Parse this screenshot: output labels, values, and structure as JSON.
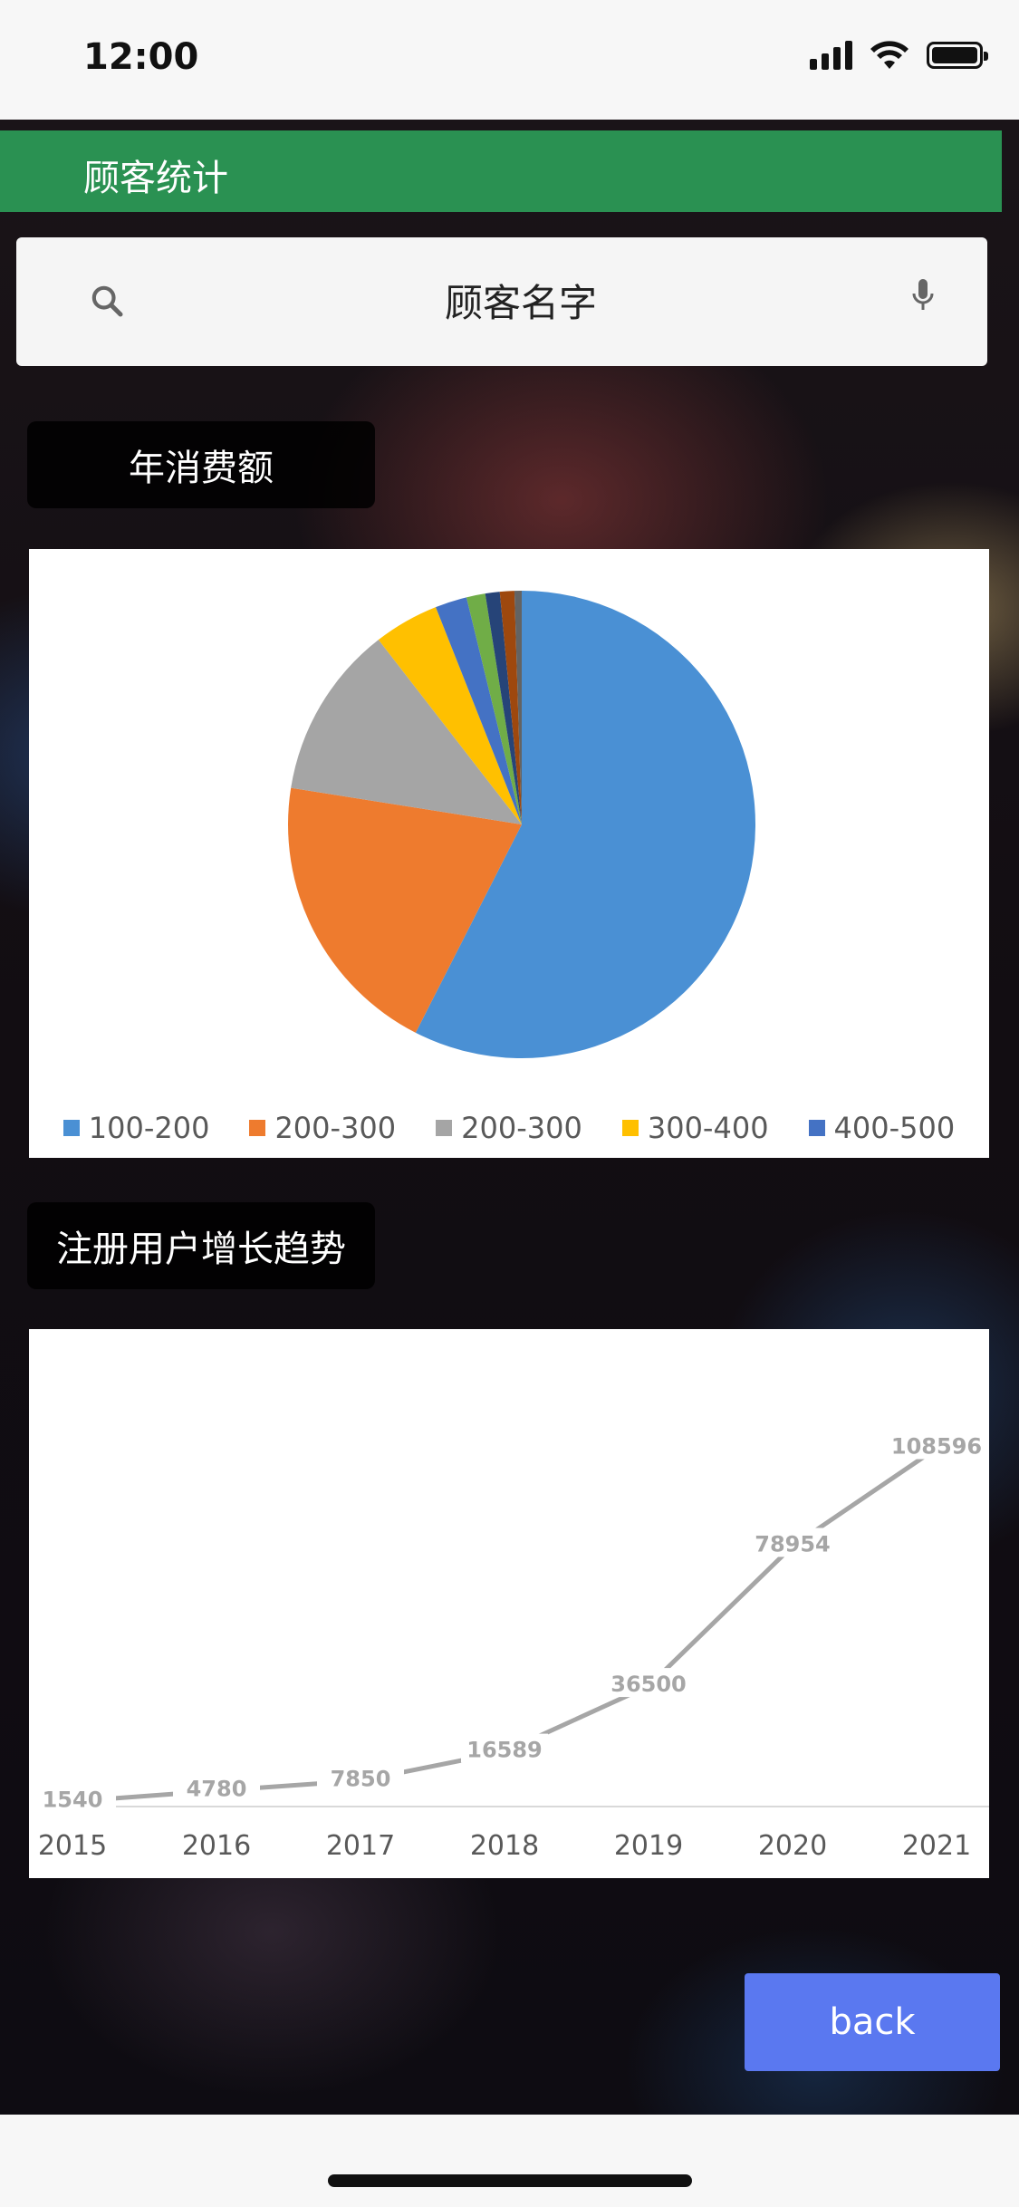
{
  "status_bar": {
    "time": "12:00"
  },
  "header": {
    "title": "顾客统计"
  },
  "search": {
    "placeholder": "顾客名字"
  },
  "sections": {
    "annual_spending": "年消费额",
    "user_growth": "注册用户增长趋势"
  },
  "colors": {
    "header": "#2a9152",
    "back_button": "#5a78f0"
  },
  "chart_data": [
    {
      "type": "pie",
      "title": "",
      "slices": [
        {
          "label": "100-200",
          "value": 57.5,
          "color": "#4a90d4"
        },
        {
          "label": "200-300",
          "value": 20,
          "color": "#ee7b2e"
        },
        {
          "label": "200-300",
          "value": 12,
          "color": "#a5a5a5"
        },
        {
          "label": "300-400",
          "value": 4.5,
          "color": "#ffc000"
        },
        {
          "label": "400-500",
          "value": 2.2,
          "color": "#4472c4"
        },
        {
          "label": "",
          "value": 1.3,
          "color": "#70ad47"
        },
        {
          "label": "",
          "value": 1.0,
          "color": "#264478"
        },
        {
          "label": "",
          "value": 1.0,
          "color": "#9e480e"
        },
        {
          "label": "",
          "value": 0.5,
          "color": "#636363"
        }
      ],
      "legend": [
        "100-200",
        "200-300",
        "200-300",
        "300-400",
        "400-500"
      ],
      "legend_placement": "bottom"
    },
    {
      "type": "line",
      "title": "",
      "x": [
        "2015",
        "2016",
        "2017",
        "2018",
        "2019",
        "2020",
        "2021"
      ],
      "series": [
        {
          "values": [
            1540,
            4780,
            7850,
            16589,
            36500,
            78954,
            108596
          ]
        }
      ],
      "ylim": [
        0,
        120000
      ],
      "grid": false,
      "line_color": "#a6a6a6"
    }
  ],
  "actions": {
    "back": "back"
  }
}
